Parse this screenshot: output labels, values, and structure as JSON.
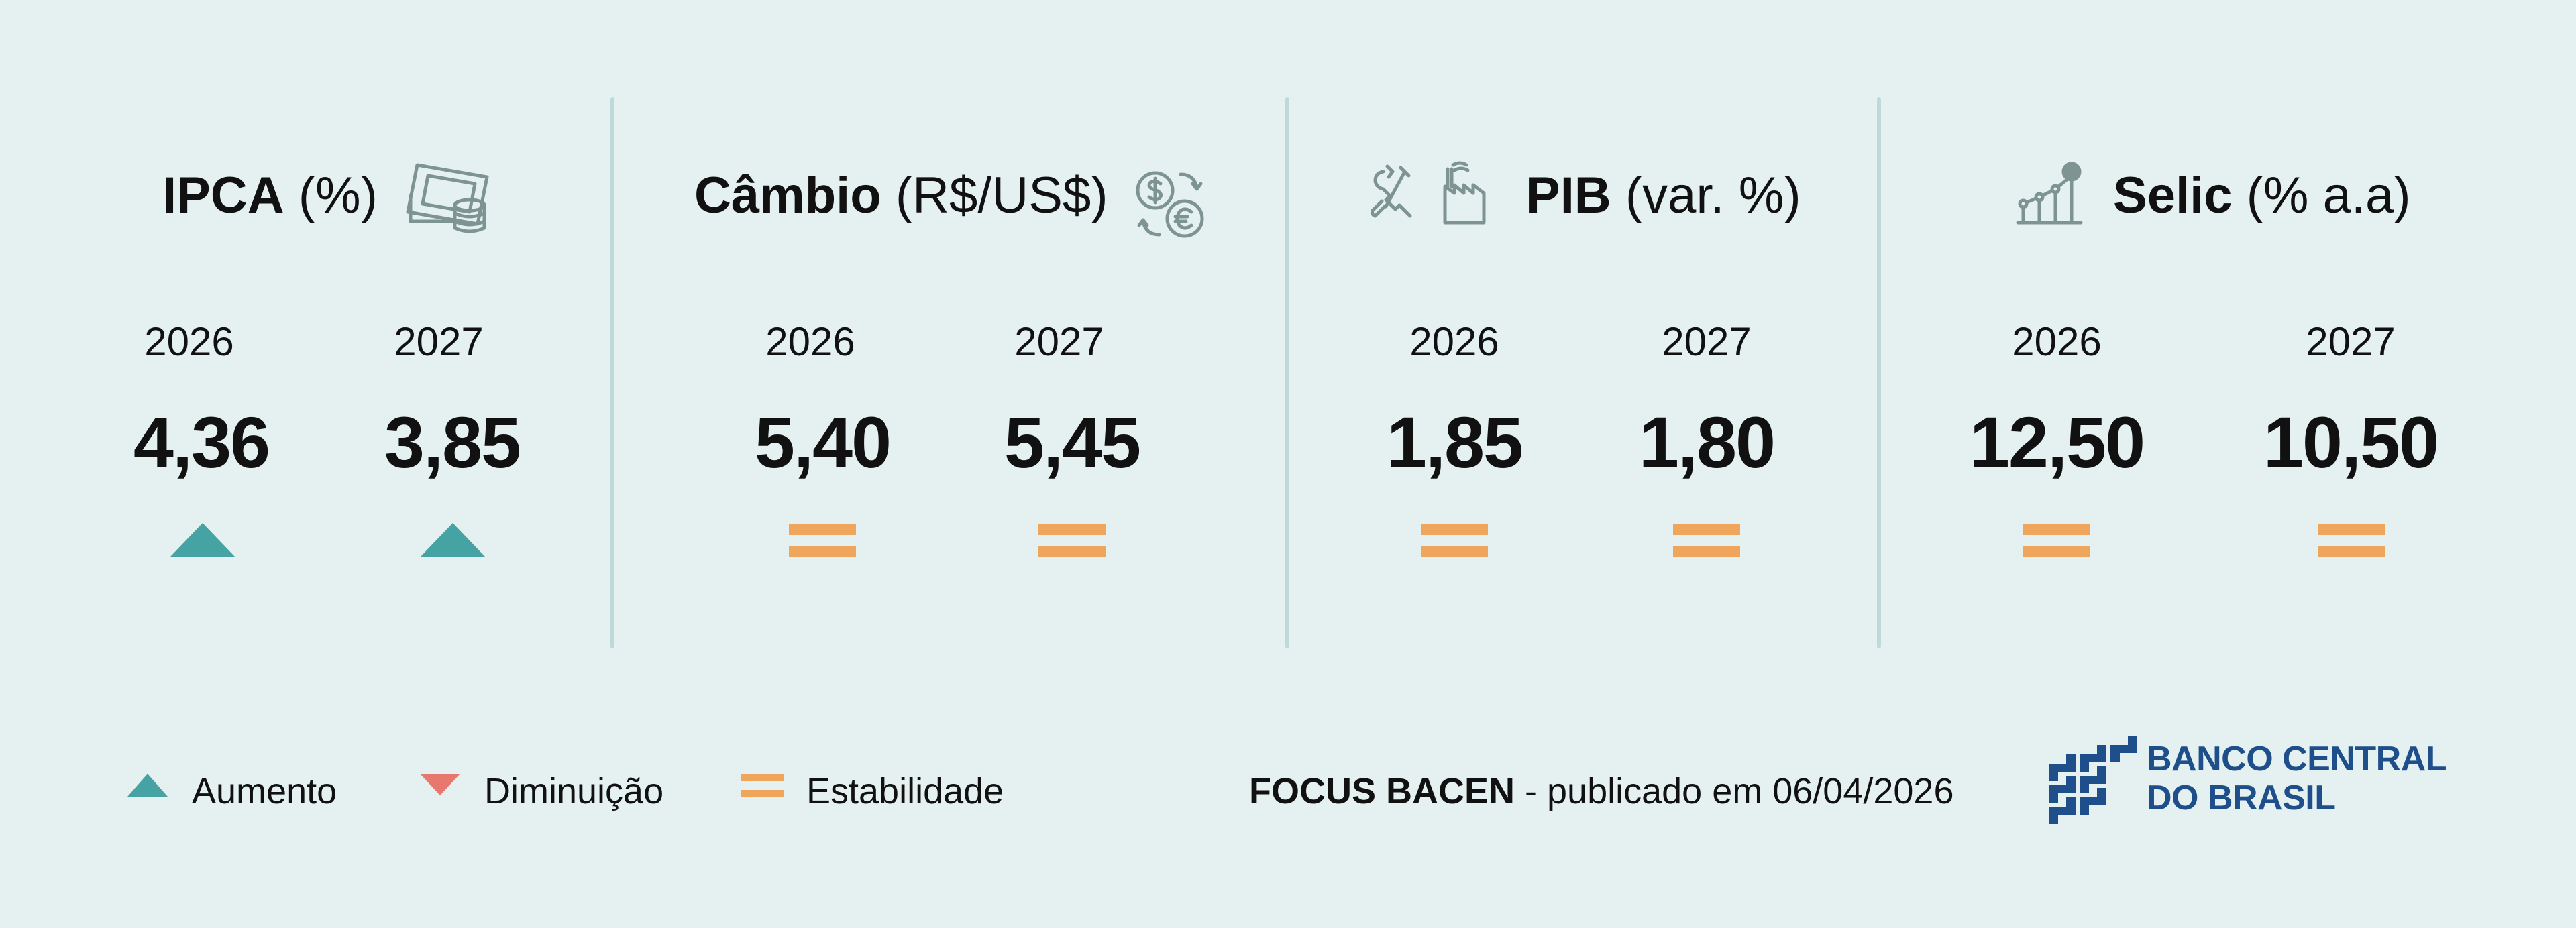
{
  "colors": {
    "background": "#e5f1f1",
    "divider": "#bcdadb",
    "increase": "#45a3a3",
    "decrease": "#e8776e",
    "stable": "#f0a55c",
    "icon": "#7d9492",
    "logo": "#1f4f8a"
  },
  "indicators": [
    {
      "name": "IPCA",
      "unit": "(%)",
      "icon": "money-coins-icon",
      "years": [
        {
          "year": "2026",
          "value": "4,36",
          "trend": "up"
        },
        {
          "year": "2027",
          "value": "3,85",
          "trend": "up"
        }
      ]
    },
    {
      "name": "Câmbio",
      "unit": "(R$/US$)",
      "icon": "currency-exchange-icon",
      "years": [
        {
          "year": "2026",
          "value": "5,40",
          "trend": "stable"
        },
        {
          "year": "2027",
          "value": "5,45",
          "trend": "stable"
        }
      ]
    },
    {
      "name": "PIB",
      "unit": "(var. %)",
      "icon": "tools-factory-icon",
      "years": [
        {
          "year": "2026",
          "value": "1,85",
          "trend": "stable"
        },
        {
          "year": "2027",
          "value": "1,80",
          "trend": "stable"
        }
      ]
    },
    {
      "name": "Selic",
      "unit": "(% a.a)",
      "icon": "growth-chart-icon",
      "years": [
        {
          "year": "2026",
          "value": "12,50",
          "trend": "stable"
        },
        {
          "year": "2027",
          "value": "10,50",
          "trend": "stable"
        }
      ]
    }
  ],
  "legend": {
    "increase": "Aumento",
    "decrease": "Diminuição",
    "stable": "Estabilidade"
  },
  "footer": {
    "source": "FOCUS BACEN",
    "published": "- publicado em 06/04/2026"
  },
  "logo": {
    "line1": "BANCO CENTRAL",
    "line2": "DO BRASIL"
  }
}
